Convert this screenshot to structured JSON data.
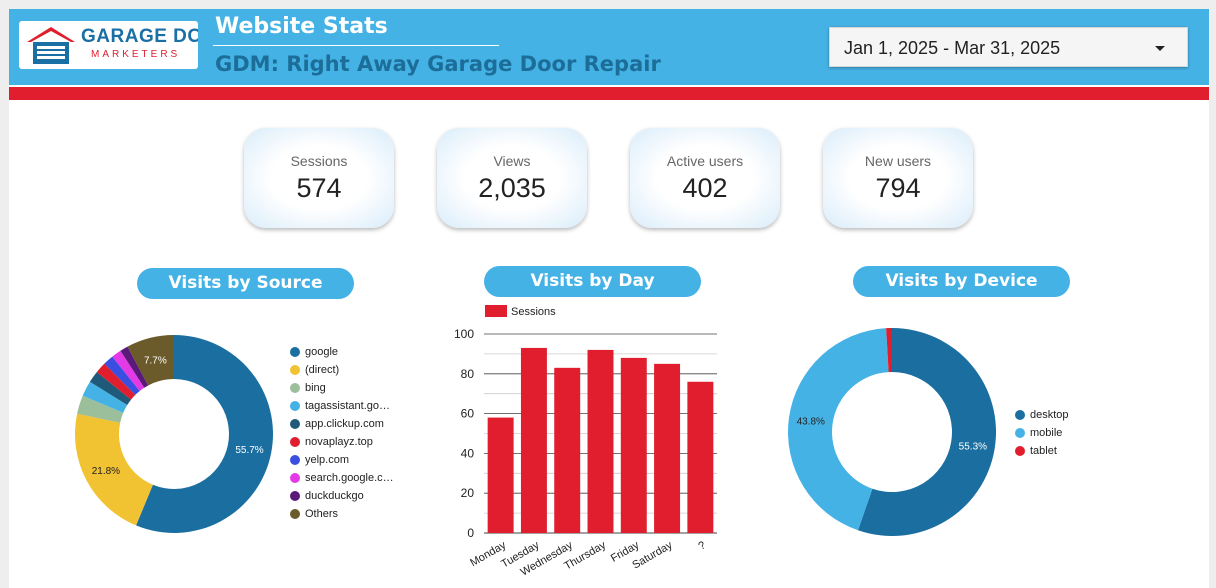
{
  "header": {
    "logo_line1": "GARAGE DOOR",
    "logo_line2": "MARKETERS",
    "title": "Website Stats",
    "subtitle": "GDM: Right Away Garage Door Repair",
    "date_range": "Jan 1, 2025 - Mar 31, 2025",
    "colors": {
      "header_bg": "#45b2e5",
      "accent_red": "#e01e2d",
      "subtitle": "#1c6e99"
    }
  },
  "kpis": [
    {
      "label": "Sessions",
      "value": "574"
    },
    {
      "label": "Views",
      "value": "2,035"
    },
    {
      "label": "Active users",
      "value": "402"
    },
    {
      "label": "New users",
      "value": "794"
    }
  ],
  "sections": {
    "source": "Visits by Source",
    "day": "Visits by Day",
    "device": "Visits by Device"
  },
  "chart_data": [
    {
      "type": "pie",
      "title": "Visits by Source",
      "donut": true,
      "legend_position": "right",
      "slices": [
        {
          "label": "google",
          "value": 55.7,
          "color": "#1a6fa0",
          "data_label": "55.7%"
        },
        {
          "label": "(direct)",
          "value": 21.8,
          "color": "#f1c232",
          "data_label": "21.8%"
        },
        {
          "label": "bing",
          "value": 3.0,
          "color": "#9bbf9b"
        },
        {
          "label": "tagassistant.go…",
          "value": 2.5,
          "color": "#45b2e5"
        },
        {
          "label": "app.clickup.com",
          "value": 1.9,
          "color": "#1f5a7a"
        },
        {
          "label": "novaplayz.top",
          "value": 1.8,
          "color": "#e01e2d"
        },
        {
          "label": "yelp.com",
          "value": 1.7,
          "color": "#3a4fe0"
        },
        {
          "label": "search.google.c…",
          "value": 1.6,
          "color": "#e43ae6"
        },
        {
          "label": "duckduckgo",
          "value": 1.3,
          "color": "#5a1a7a"
        },
        {
          "label": "Others",
          "value": 7.7,
          "color": "#6b5a2a",
          "data_label": "7.7%"
        }
      ]
    },
    {
      "type": "bar",
      "title": "Visits by Day",
      "categories": [
        "Monday",
        "Tuesday",
        "Wednesday",
        "Thursday",
        "Friday",
        "Saturday",
        "?"
      ],
      "series": [
        {
          "name": "Sessions",
          "values": [
            58,
            93,
            83,
            92,
            88,
            85,
            76
          ],
          "color": "#e01e2d"
        }
      ],
      "ylim": [
        0,
        100
      ],
      "yticks": [
        0,
        20,
        40,
        60,
        80,
        100
      ],
      "grid": true,
      "legend_position": "top-left"
    },
    {
      "type": "pie",
      "title": "Visits by Device",
      "donut": true,
      "legend_position": "right",
      "slices": [
        {
          "label": "desktop",
          "value": 55.3,
          "color": "#1a6fa0",
          "data_label": "55.3%"
        },
        {
          "label": "mobile",
          "value": 43.8,
          "color": "#45b2e5",
          "data_label": "43.8%"
        },
        {
          "label": "tablet",
          "value": 0.9,
          "color": "#e01e2d"
        }
      ]
    }
  ]
}
